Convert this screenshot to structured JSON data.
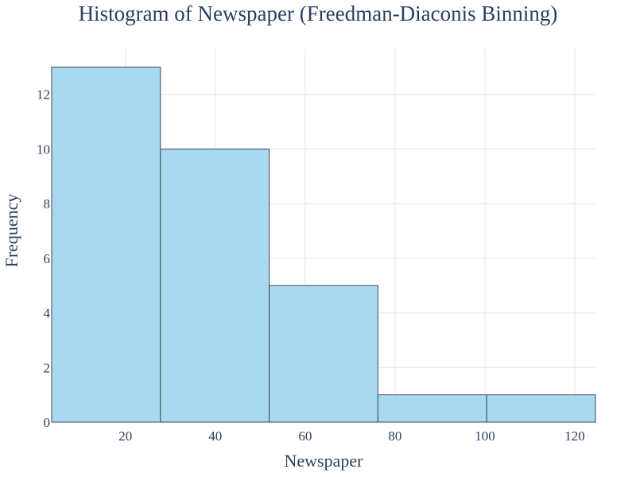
{
  "chart_data": {
    "type": "bar",
    "title": "Histogram of Newspaper (Freedman-Diaconis Binning)",
    "xlabel": "Newspaper",
    "ylabel": "Frequency",
    "bins": [
      {
        "start": 3.6,
        "end": 27.8,
        "count": 13
      },
      {
        "start": 27.8,
        "end": 52.0,
        "count": 10
      },
      {
        "start": 52.0,
        "end": 76.2,
        "count": 5
      },
      {
        "start": 76.2,
        "end": 100.4,
        "count": 1
      },
      {
        "start": 100.4,
        "end": 124.6,
        "count": 1
      }
    ],
    "xlim": [
      3.6,
      124.6
    ],
    "ylim": [
      0,
      13.68
    ],
    "x_ticks": [
      20,
      40,
      60,
      80,
      100,
      120
    ],
    "y_ticks": [
      0,
      2,
      4,
      6,
      8,
      10,
      12
    ],
    "grid": true,
    "colors": {
      "bar_fill": "#a9d9f1",
      "bar_stroke": "#3f4a52",
      "text": "#2a3f5f"
    }
  }
}
